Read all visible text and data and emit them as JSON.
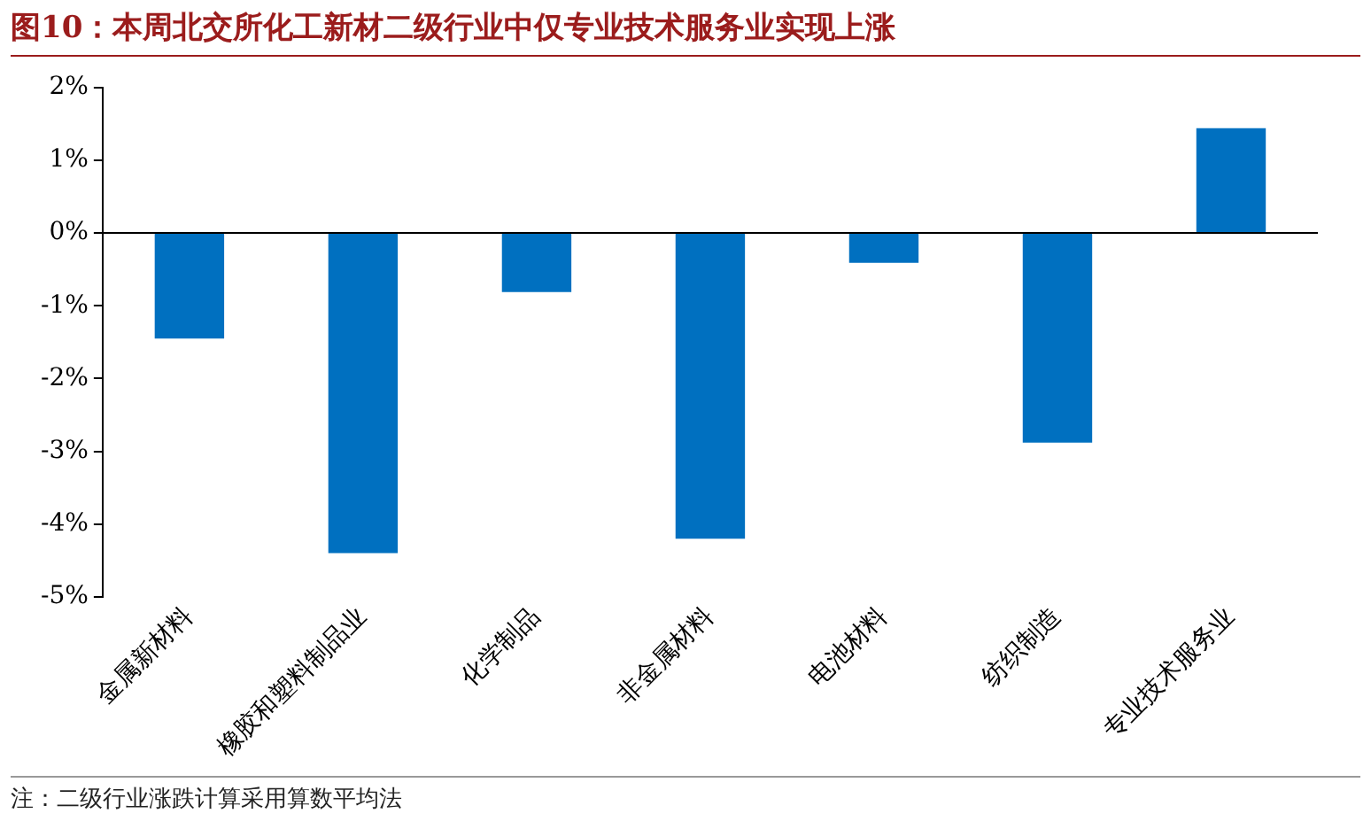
{
  "chart_data": {
    "type": "bar",
    "title": "图10：本周北交所化工新材二级行业中仅专业技术服务业实现上涨",
    "categories": [
      "金属新材料",
      "橡胶和塑料制品业",
      "化学制品",
      "非金属材料",
      "电池材料",
      "纺织制造",
      "专业技术服务业"
    ],
    "values": [
      -1.45,
      -4.4,
      -0.81,
      -4.2,
      -0.41,
      -2.88,
      1.44
    ],
    "color": "#0070c0",
    "ylim": [
      -5,
      2
    ],
    "yticks": [
      {
        "value": -5,
        "label": "-5%"
      },
      {
        "value": -4,
        "label": "-4%"
      },
      {
        "value": -3,
        "label": "-3%"
      },
      {
        "value": -2,
        "label": "-2%"
      },
      {
        "value": -1,
        "label": "-1%"
      },
      {
        "value": 0,
        "label": "0%"
      },
      {
        "value": 1,
        "label": "1%"
      },
      {
        "value": 2,
        "label": "2%"
      }
    ],
    "grid": false,
    "legend": false,
    "ref_lines": [
      {
        "axis": "y",
        "value": 0,
        "color": "#000000"
      }
    ],
    "annotations": [
      "注：二级行业涨跌计算采用算数平均法"
    ]
  }
}
